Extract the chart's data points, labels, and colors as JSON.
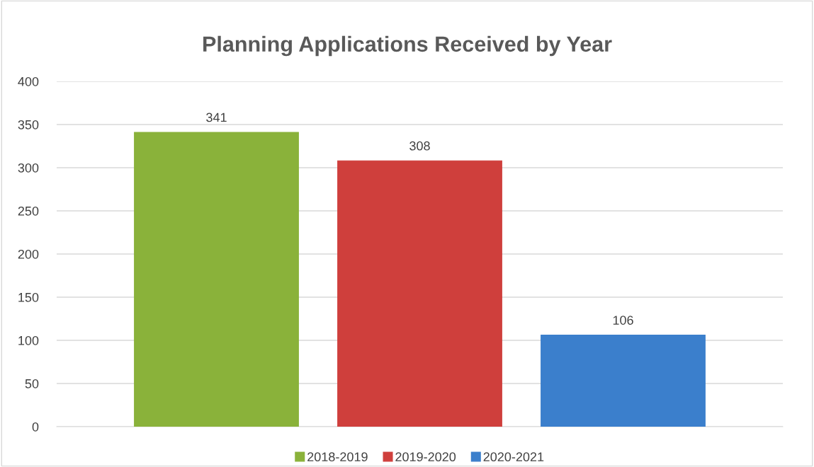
{
  "chart_data": {
    "type": "bar",
    "title": "Planning Applications Received by Year",
    "categories": [
      null
    ],
    "series": [
      {
        "name": "2018-2019",
        "color": "#8ab23a",
        "values": [
          341
        ]
      },
      {
        "name": "2019-2020",
        "color": "#cf3f3c",
        "values": [
          308
        ]
      },
      {
        "name": "2020-2021",
        "color": "#3b7fcc",
        "values": [
          106
        ]
      }
    ],
    "ylim": [
      0,
      400
    ],
    "yticks": [
      0,
      50,
      100,
      150,
      200,
      250,
      300,
      350,
      400
    ],
    "grid": "y",
    "legend": "bottom",
    "data_labels": true,
    "tick_labels": "y"
  }
}
